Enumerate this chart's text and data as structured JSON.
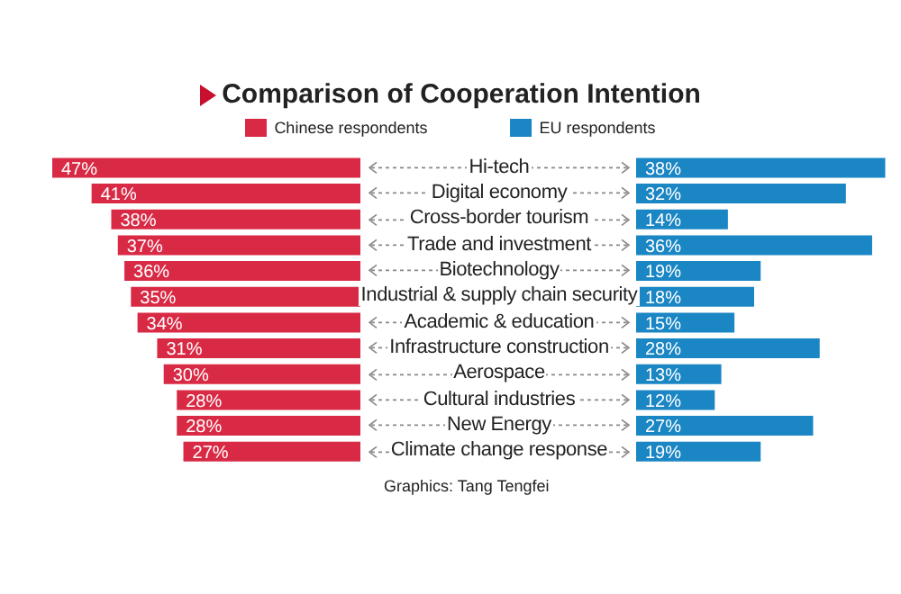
{
  "chart_data": [
    {
      "type": "bar",
      "orientation": "horizontal",
      "title": "Comparison of Cooperation Intention",
      "categories": [
        "Hi-tech",
        "Digital economy",
        "Cross-border tourism",
        "Trade and investment",
        "Biotechnology",
        "Industrial & supply chain security",
        "Academic & education",
        "Infrastructure construction",
        "Aerospace",
        "Cultural industries",
        "New Energy",
        "Climate change response"
      ],
      "series": [
        {
          "name": "Chinese respondents",
          "color": "#d92a45",
          "values": [
            47,
            41,
            38,
            37,
            36,
            35,
            34,
            31,
            30,
            28,
            28,
            27
          ],
          "value_labels": [
            "47%",
            "41%",
            "38%",
            "37%",
            "36%",
            "35%",
            "34%",
            "31%",
            "30%",
            "28%",
            "28%",
            "27%"
          ]
        }
      ],
      "legend": "top"
    },
    {
      "type": "bar",
      "orientation": "horizontal",
      "categories": [
        null,
        null,
        null,
        null,
        null,
        null,
        null,
        null,
        null,
        null,
        null,
        null
      ],
      "series": [
        {
          "name": "EU respondents",
          "color": "#1a86c4",
          "values": [
            38,
            32,
            14,
            36,
            19,
            18,
            15,
            28,
            13,
            12,
            27,
            19
          ],
          "value_labels": [
            "38%",
            "32%",
            "14%",
            "36%",
            "19%",
            "18%",
            "15%",
            "28%",
            "13%",
            "12%",
            "27%",
            "19%"
          ]
        }
      ],
      "legend": "top",
      "annotations": [
        "Graphics: Tang Tengfei"
      ]
    }
  ]
}
